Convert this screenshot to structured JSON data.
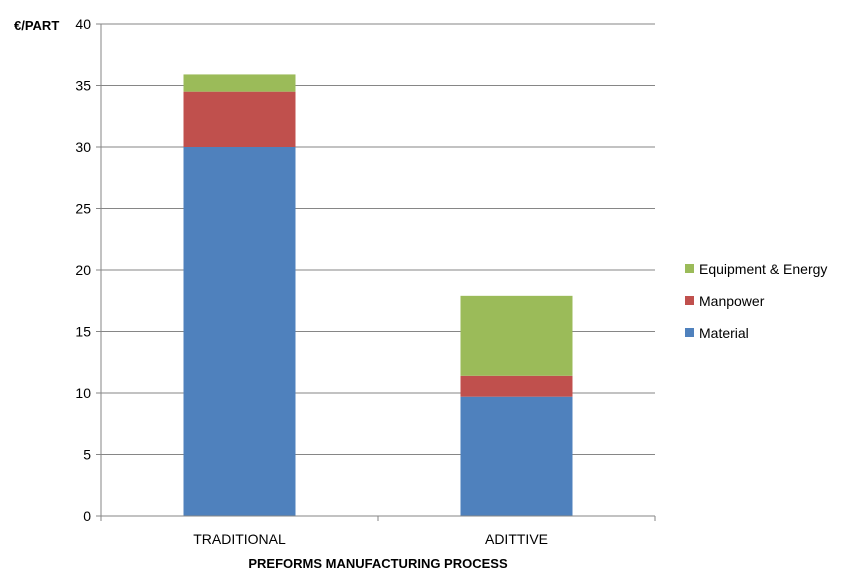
{
  "chart_data": {
    "type": "bar",
    "stacked": true,
    "categories": [
      "TRADITIONAL",
      "ADITTIVE"
    ],
    "series": [
      {
        "name": "Material",
        "color": "#4f81bd",
        "values": [
          30,
          9.7
        ]
      },
      {
        "name": "Manpower",
        "color": "#c0504d",
        "values": [
          4.5,
          1.7
        ]
      },
      {
        "name": "Equipment & Energy",
        "color": "#9bbb59",
        "values": [
          1.4,
          6.5
        ]
      }
    ],
    "ylabel": "€/PART",
    "xlabel": "PREFORMS MANUFACTURING PROCESS",
    "ylim": [
      0,
      40
    ],
    "yticks": [
      "0",
      "5",
      "10",
      "15",
      "20",
      "25",
      "30",
      "35",
      "40"
    ],
    "grid": true,
    "legend_position": "right"
  }
}
